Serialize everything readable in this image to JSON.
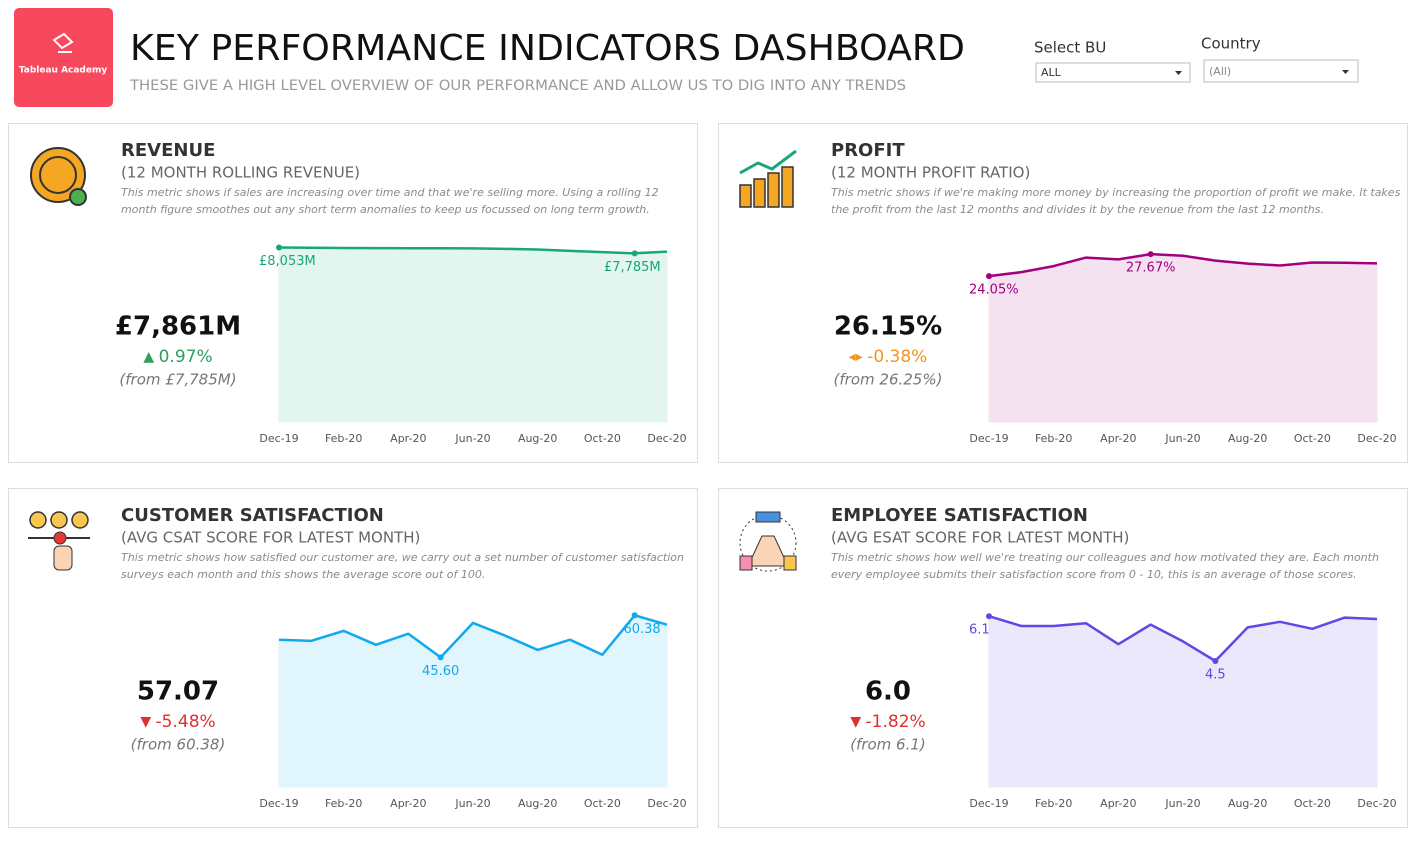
{
  "header": {
    "logo": "Tableau Academy",
    "title": "KEY PERFORMANCE INDICATORS DASHBOARD",
    "subtitle": "THESE GIVE A HIGH LEVEL OVERVIEW OF OUR PERFORMANCE AND ALLOW US TO DIG INTO ANY TRENDS"
  },
  "filters": [
    {
      "label": "Select BU",
      "value": "ALL"
    },
    {
      "label": "Country",
      "value": "(All)"
    }
  ],
  "chart_data": [
    {
      "type": "line",
      "title": "REVENUE",
      "subtitle": "(12 MONTH ROLLING REVENUE)",
      "description": "This metric shows if sales are increasing over time and that we're selling more. Using a rolling 12 month figure smoothes out any short term anomalies to keep us focussed on long term growth.",
      "kpi": {
        "value": "£7,861M",
        "change": "0.97%",
        "from": "(from £7,785M)",
        "trend": "up"
      },
      "categories": [
        "Dec-19",
        null,
        "Feb-20",
        null,
        "Apr-20",
        null,
        "Jun-20",
        null,
        "Aug-20",
        null,
        "Oct-20",
        null,
        "Dec-20"
      ],
      "values": [
        8053,
        8040,
        8030,
        8025,
        8022,
        8020,
        8015,
        7990,
        7960,
        7900,
        7840,
        7785,
        7861
      ],
      "value_labels": [
        "£8,053M",
        null,
        null,
        null,
        null,
        null,
        null,
        null,
        null,
        null,
        null,
        "£7,785M",
        null
      ],
      "color": "#1aa67a",
      "fill": "#e2f5ee",
      "ylim": [
        0,
        8400
      ]
    },
    {
      "type": "line",
      "title": "PROFIT",
      "subtitle": "(12 MONTH PROFIT RATIO)",
      "description": "This metric shows if we're making more money by increasing the proportion of profit we make. It takes the profit from the last 12 months and divides it by the revenue from the last 12 months.",
      "kpi": {
        "value": "26.15%",
        "change": "-0.38%",
        "from": "(from 26.25%)",
        "trend": "flat"
      },
      "categories": [
        "Dec-19",
        null,
        "Feb-20",
        null,
        "Apr-20",
        null,
        "Jun-20",
        null,
        "Aug-20",
        null,
        "Oct-20",
        null,
        "Dec-20"
      ],
      "values": [
        24.05,
        24.7,
        25.7,
        27.1,
        26.8,
        27.67,
        27.4,
        26.6,
        26.1,
        25.8,
        26.3,
        26.25,
        26.15
      ],
      "value_labels": [
        "24.05%",
        null,
        null,
        null,
        null,
        "27.67%",
        null,
        null,
        null,
        null,
        null,
        null,
        null
      ],
      "color": "#a3007f",
      "fill": "#f5e2f0",
      "ylim": [
        0,
        30
      ]
    },
    {
      "type": "line",
      "title": "CUSTOMER SATISFACTION",
      "subtitle": "(AVG CSAT SCORE FOR LATEST MONTH)",
      "description": "This metric shows how satisfied our customer are, we carry out a set number of customer satisfaction surveys each month and this shows the average score out of 100.",
      "kpi": {
        "value": "57.07",
        "change": "-5.48%",
        "from": "(from 60.38)",
        "trend": "down"
      },
      "categories": [
        "Dec-19",
        null,
        "Feb-20",
        null,
        "Apr-20",
        null,
        "Jun-20",
        null,
        "Aug-20",
        null,
        "Oct-20",
        null,
        "Dec-20"
      ],
      "values": [
        51.8,
        51.4,
        54.9,
        50,
        53.9,
        45.6,
        57.7,
        53.2,
        48.2,
        51.8,
        46.5,
        60.38,
        57.07
      ],
      "value_labels": [
        null,
        null,
        null,
        null,
        null,
        "45.60",
        null,
        null,
        null,
        null,
        null,
        "60.38",
        null
      ],
      "color": "#11a9ee",
      "fill": "#e1f5fd",
      "ylim": [
        0,
        64
      ]
    },
    {
      "type": "line",
      "title": "EMPLOYEE SATISFACTION",
      "subtitle": "(AVG ESAT SCORE FOR LATEST MONTH)",
      "description": "This metric shows how well we're treating our colleagues and how motivated they are. Each month every employee submits their satisfaction score from 0 - 10, this is an average of those scores.",
      "kpi": {
        "value": "6.0",
        "change": "-1.82%",
        "from": "(from 6.1)",
        "trend": "down"
      },
      "categories": [
        "Dec-19",
        null,
        "Feb-20",
        null,
        "Apr-20",
        null,
        "Jun-20",
        null,
        "Aug-20",
        null,
        "Oct-20",
        null,
        "Dec-20"
      ],
      "values": [
        6.1,
        5.75,
        5.75,
        5.85,
        5.1,
        5.8,
        5.2,
        4.5,
        5.7,
        5.9,
        5.65,
        6.05,
        6.0
      ],
      "value_labels": [
        "6.1",
        null,
        null,
        null,
        null,
        null,
        null,
        "4.5",
        null,
        null,
        null,
        null,
        null
      ],
      "color": "#5b4ae6",
      "fill": "#ebe8fb",
      "ylim": [
        0,
        6.5
      ]
    }
  ]
}
